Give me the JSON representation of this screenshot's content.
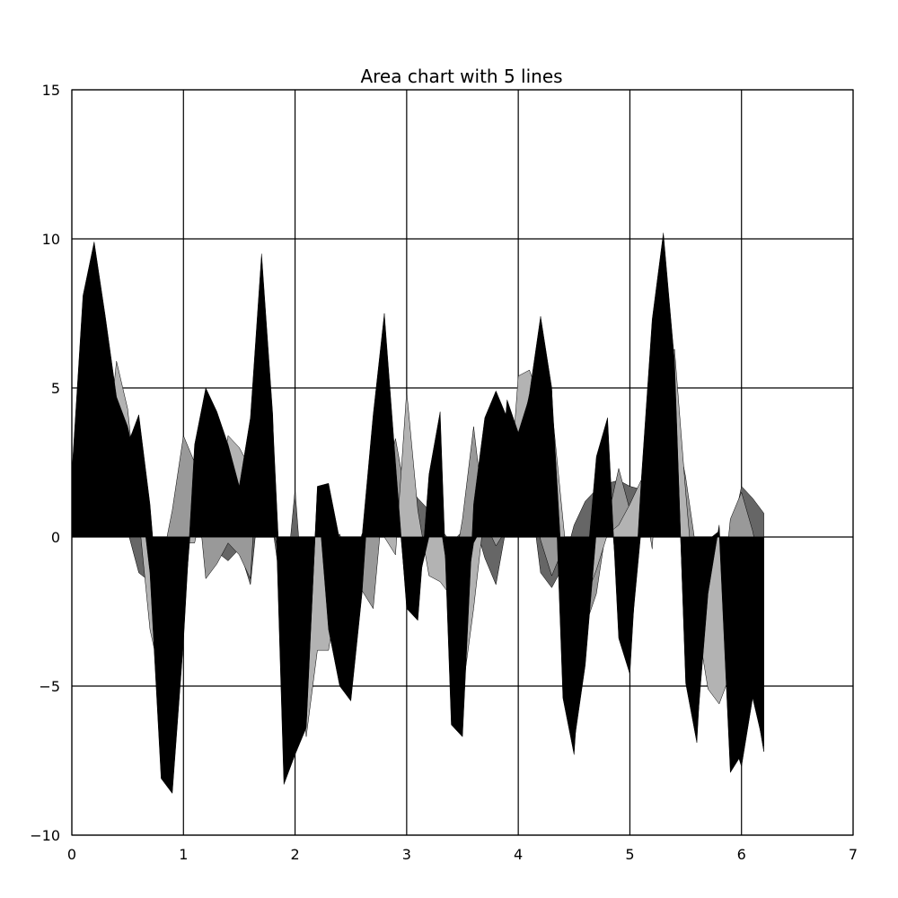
{
  "chart_data": {
    "type": "area",
    "title": "Area chart with 5 lines",
    "xlabel": "",
    "ylabel": "",
    "xlim": [
      0,
      7
    ],
    "ylim": [
      -10,
      15
    ],
    "xticks": [
      0,
      1,
      2,
      3,
      4,
      5,
      6,
      7
    ],
    "xtick_labels": [
      "0",
      "1",
      "2",
      "3",
      "4",
      "5",
      "6",
      "7"
    ],
    "yticks": [
      -10,
      -5,
      0,
      5,
      10,
      15
    ],
    "ytick_labels": [
      "−10",
      "−5",
      "0",
      "5",
      "10",
      "15"
    ],
    "grid": true,
    "stacked": false,
    "x": [
      0.0,
      0.1,
      0.2,
      0.3,
      0.4,
      0.5,
      0.6,
      0.7,
      0.8,
      0.9,
      1.0,
      1.1,
      1.2,
      1.3,
      1.4,
      1.5,
      1.6,
      1.7,
      1.8,
      1.9,
      2.0,
      2.1,
      2.2,
      2.3,
      2.4,
      2.5,
      2.6,
      2.7,
      2.8,
      2.9,
      3.0,
      3.1,
      3.2,
      3.3,
      3.4,
      3.5,
      3.6,
      3.7,
      3.8,
      3.9,
      4.0,
      4.1,
      4.2,
      4.3,
      4.4,
      4.5,
      4.6,
      4.7,
      4.8,
      4.9,
      5.0,
      5.1,
      5.2,
      5.3,
      5.4,
      5.5,
      5.6,
      5.7,
      5.8,
      5.9,
      6.0,
      6.1,
      6.2
    ],
    "series": [
      {
        "color": "#666666",
        "values": [
          1.6,
          1.5,
          1.3,
          1.1,
          0.8,
          0.2,
          -1.2,
          -1.5,
          -1.2,
          -0.8,
          -0.3,
          0.2,
          0.3,
          -0.5,
          -0.8,
          -0.4,
          -1.6,
          2.1,
          0.3,
          -2.4,
          1.6,
          -3.4,
          0.3,
          -0.2,
          0.1,
          -1.0,
          0.1,
          0.6,
          0.9,
          1.4,
          1.8,
          1.3,
          0.9,
          0.3,
          -0.2,
          0.2,
          0.6,
          -0.7,
          -1.6,
          0.5,
          1.2,
          1.8,
          -1.2,
          -1.7,
          -1.0,
          0.4,
          1.2,
          1.6,
          1.8,
          1.9,
          1.7,
          1.6,
          1.2,
          0.6,
          0.2,
          -0.2,
          -0.8,
          -1.8,
          -1.2,
          -0.1,
          1.7,
          1.3,
          0.8
        ]
      },
      {
        "color": "#999999",
        "values": [
          1.6,
          1.0,
          1.1,
          2.1,
          2.4,
          2.0,
          0.3,
          -1.2,
          -1.0,
          0.9,
          3.4,
          2.5,
          -1.4,
          -0.9,
          -0.2,
          -0.6,
          -1.4,
          4.6,
          0.2,
          -1.0,
          -0.1,
          -6.3,
          -1.1,
          -2.4,
          -0.6,
          0.0,
          -1.8,
          -2.4,
          1.7,
          3.3,
          1.2,
          -0.4,
          -0.2,
          -0.4,
          -1.6,
          0.6,
          3.7,
          0.5,
          -0.3,
          0.3,
          1.1,
          2.4,
          -0.1,
          -1.3,
          -0.4,
          -0.1,
          -3.0,
          -1.9,
          0.6,
          2.3,
          0.9,
          1.7,
          2.8,
          3.6,
          4.0,
          2.0,
          -0.6,
          -4.2,
          -3.2,
          0.6,
          1.5,
          0.2,
          -1.6
        ]
      },
      {
        "color": "#b3b3b3",
        "values": [
          1.8,
          5.4,
          5.5,
          2.2,
          5.9,
          4.3,
          0.7,
          -3.1,
          -4.8,
          -1.7,
          -0.2,
          -0.2,
          1.6,
          1.2,
          3.4,
          3.0,
          2.3,
          6.1,
          1.2,
          -2.5,
          -2.2,
          -6.7,
          -3.8,
          -3.8,
          -1.4,
          -1.2,
          -0.5,
          1.9,
          0.0,
          -0.6,
          4.9,
          0.9,
          -1.3,
          -1.5,
          -2.0,
          -5.2,
          -2.4,
          0.9,
          0.0,
          0.3,
          5.4,
          5.6,
          4.5,
          4.4,
          0.6,
          -3.2,
          -2.1,
          -1.1,
          0.1,
          0.4,
          1.1,
          1.9,
          -0.4,
          5.6,
          6.3,
          1.5,
          -2.8,
          -5.1,
          -5.6,
          -4.6,
          -2.1,
          -1.8,
          -2.5
        ]
      },
      {
        "color": "#000000",
        "values": [
          2.1,
          8.1,
          9.9,
          7.4,
          4.7,
          3.7,
          2.0,
          -1.2,
          -8.1,
          -8.6,
          -3.5,
          3.1,
          5.0,
          4.2,
          3.1,
          1.7,
          4.0,
          9.5,
          4.1,
          -8.3,
          -7.3,
          -6.4,
          1.7,
          1.8,
          -0.1,
          -2.4,
          0.0,
          4.1,
          7.5,
          2.5,
          -2.4,
          -2.8,
          2.1,
          4.2,
          -6.3,
          -6.7,
          1.1,
          4.0,
          4.9,
          4.0,
          3.0,
          4.8,
          7.4,
          5.0,
          -5.4,
          -7.3,
          -1.6,
          2.7,
          4.0,
          -3.4,
          -4.6,
          1.8,
          7.3,
          10.2,
          5.9,
          -4.9,
          -6.9,
          -0.1,
          0.2,
          -7.9,
          -7.3,
          -5.0,
          -7.2
        ]
      },
      {
        "color": "#000000",
        "values": [
          1.2,
          4.1,
          9.7,
          2.9,
          1.6,
          3.1,
          4.1,
          1.1,
          -3.4,
          -4.9,
          -2.7,
          1.9,
          4.7,
          2.6,
          1.1,
          1.7,
          0.7,
          9.0,
          3.9,
          -4.0,
          -4.7,
          -6.2,
          1.6,
          -3.1,
          -5.0,
          -5.5,
          -1.9,
          3.7,
          6.8,
          2.1,
          -2.2,
          -1.6,
          0.0,
          0.5,
          -2.0,
          -2.7,
          -0.2,
          0.5,
          0.3,
          4.6,
          3.5,
          4.7,
          6.6,
          4.9,
          -1.6,
          -6.9,
          -4.3,
          0.2,
          2.3,
          -2.2,
          -3.8,
          0.2,
          5.3,
          9.9,
          5.6,
          -4.7,
          -6.5,
          -1.9,
          0.4,
          -6.5,
          -7.7,
          -5.4,
          -7.0
        ]
      }
    ]
  }
}
